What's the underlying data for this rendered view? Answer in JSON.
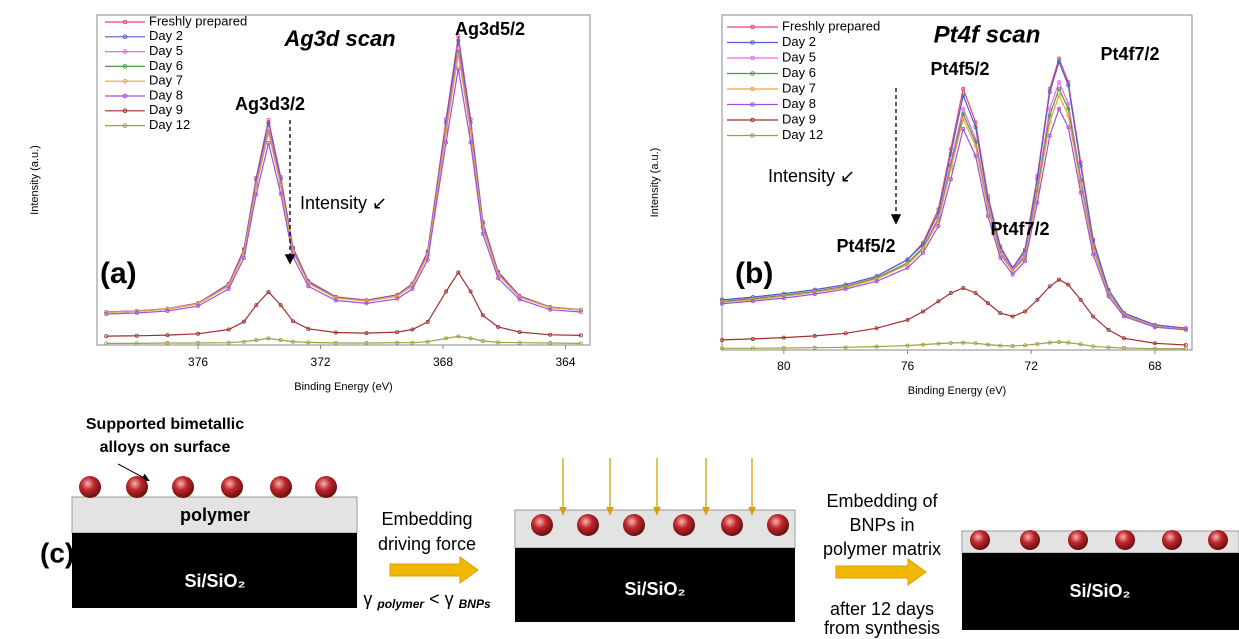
{
  "chart_data": [
    {
      "type": "line",
      "title": "Ag3d scan",
      "panel_label": "(a)",
      "x_label": "Binding Energy (eV)",
      "y_label": "Intensity (a.u.)",
      "annotations": [
        "Ag3d5/2",
        "Ag3d3/2",
        "Intensity ↙"
      ],
      "legend": "upper left",
      "xlim": [
        379.3,
        363.2
      ],
      "xticks": [
        376,
        372,
        368,
        364
      ],
      "ylim": [
        0,
        100
      ],
      "x": [
        379,
        378,
        377,
        376,
        375,
        374.5,
        374.1,
        373.7,
        373.3,
        372.9,
        372.4,
        371.5,
        370.5,
        369.5,
        369,
        368.5,
        367.9,
        367.5,
        367.1,
        366.7,
        366.2,
        365.5,
        364.5,
        363.5
      ],
      "series": [
        {
          "name": "Freshly prepared",
          "color": "#ee4466",
          "values": [
            10.0,
            10.3,
            11.0,
            12.7,
            18.5,
            29.1,
            50.7,
            68.2,
            50.9,
            29.5,
            19.4,
            14.6,
            13.6,
            15.2,
            18.6,
            28.4,
            68.4,
            93.6,
            68.4,
            37.3,
            22.2,
            14.9,
            11.5,
            10.7
          ]
        },
        {
          "name": "Day 2",
          "color": "#4c5fd6",
          "values": [
            10.0,
            10.3,
            11.0,
            12.6,
            18.4,
            28.8,
            50.1,
            67.3,
            50.3,
            29.2,
            19.2,
            14.5,
            13.5,
            15.1,
            18.5,
            28.1,
            67.5,
            92.3,
            67.5,
            36.9,
            22.0,
            14.8,
            11.5,
            10.7
          ]
        },
        {
          "name": "Day 5",
          "color": "#ee66ee",
          "values": [
            10.0,
            10.2,
            10.9,
            12.5,
            18.1,
            28.2,
            48.8,
            65.5,
            49.0,
            28.6,
            18.9,
            14.3,
            13.4,
            14.9,
            18.2,
            27.5,
            65.7,
            89.8,
            65.7,
            36.0,
            21.6,
            14.6,
            11.4,
            10.6
          ]
        },
        {
          "name": "Day 6",
          "color": "#4a9a4a",
          "values": [
            9.9,
            10.2,
            10.9,
            12.5,
            17.9,
            27.9,
            48.2,
            64.6,
            48.4,
            28.3,
            18.8,
            14.3,
            13.3,
            14.8,
            18.0,
            27.2,
            64.8,
            88.5,
            64.8,
            35.6,
            21.4,
            14.5,
            11.4,
            10.6
          ]
        },
        {
          "name": "Day 7",
          "color": "#f0a040",
          "values": [
            9.9,
            10.2,
            10.9,
            12.5,
            17.9,
            27.8,
            48.0,
            64.4,
            48.2,
            28.2,
            18.7,
            14.2,
            13.3,
            14.8,
            18.0,
            27.1,
            64.5,
            88.1,
            64.5,
            35.5,
            21.3,
            14.5,
            11.3,
            10.6
          ]
        },
        {
          "name": "Day 8",
          "color": "#a050e0",
          "values": [
            9.4,
            9.7,
            10.3,
            11.8,
            17.0,
            26.4,
            45.6,
            61.2,
            45.8,
            26.7,
            17.8,
            13.5,
            12.6,
            14.0,
            17.0,
            25.8,
            61.4,
            83.8,
            61.4,
            33.7,
            20.2,
            13.8,
            10.7,
            10.0
          ]
        },
        {
          "name": "Day 9",
          "color": "#a03030",
          "values": [
            2.7,
            2.8,
            3.0,
            3.4,
            4.7,
            7.1,
            12.1,
            16.1,
            12.1,
            7.2,
            4.9,
            3.8,
            3.6,
            3.9,
            4.7,
            7.0,
            16.2,
            22.0,
            16.2,
            9.0,
            5.5,
            3.9,
            3.1,
            2.9
          ]
        },
        {
          "name": "Day 12",
          "color": "#a0a040",
          "values": [
            0.5,
            0.5,
            0.6,
            0.6,
            0.7,
            1.0,
            1.5,
            2.0,
            1.5,
            1.0,
            0.8,
            0.6,
            0.6,
            0.7,
            0.7,
            1.0,
            2.0,
            2.6,
            2.0,
            1.2,
            0.8,
            0.7,
            0.6,
            0.5
          ]
        }
      ]
    },
    {
      "type": "line",
      "title": "Pt4f scan",
      "panel_label": "(b)",
      "x_label": "Binding Energy (eV)",
      "y_label": "Intensity (a.u.)",
      "annotations": [
        "Pt4f5/2",
        "Pt4f7/2",
        "Intensity ↙",
        "Pt4f5/2",
        "Pt4f7/2"
      ],
      "legend": "upper left",
      "xlim": [
        82,
        66.8
      ],
      "xticks": [
        80,
        76,
        72,
        68
      ],
      "ylim": [
        0,
        100
      ],
      "x": [
        82,
        81,
        80,
        79,
        78,
        77,
        76,
        75.5,
        75,
        74.6,
        74.2,
        73.8,
        73.4,
        73,
        72.6,
        72.2,
        71.8,
        71.4,
        71.1,
        70.8,
        70.4,
        70,
        69.5,
        69,
        68,
        67
      ],
      "series": [
        {
          "name": "Freshly prepared",
          "color": "#ee4466",
          "values": [
            15,
            15.8,
            16.8,
            18,
            19.5,
            22,
            27,
            32,
            42,
            60,
            78,
            68,
            46,
            31,
            24.5,
            30,
            52,
            78,
            87,
            80,
            56,
            33,
            18,
            11,
            7.5,
            6.5
          ]
        },
        {
          "name": "Day 2",
          "color": "#4c5fd6",
          "values": [
            15,
            15.8,
            16.8,
            18,
            19.5,
            22,
            27,
            31.5,
            41,
            58.5,
            76,
            66.5,
            45,
            30.5,
            24.5,
            29.5,
            51,
            77,
            86,
            79,
            55,
            32.5,
            18,
            11,
            7.5,
            6.5
          ]
        },
        {
          "name": "Day 5",
          "color": "#ee66ee",
          "values": [
            14.5,
            15.3,
            16.3,
            17.5,
            19,
            21.5,
            26,
            30.5,
            39.5,
            56,
            72,
            63,
            43,
            29.5,
            24,
            28.5,
            48.5,
            72,
            80,
            73.5,
            51.5,
            31,
            17,
            10.5,
            7,
            6.2
          ]
        },
        {
          "name": "Day 6",
          "color": "#4a9a4a",
          "values": [
            14.5,
            15.3,
            16.3,
            17.5,
            19,
            21.5,
            26,
            30.5,
            39,
            55,
            70.5,
            62,
            42.5,
            29,
            23.5,
            28,
            47.5,
            70,
            78,
            72,
            50.5,
            30.5,
            17,
            10.5,
            7,
            6.2
          ]
        },
        {
          "name": "Day 7",
          "color": "#f0a040",
          "values": [
            14.2,
            15,
            16,
            17.2,
            18.7,
            21.2,
            25.5,
            30,
            38.5,
            54,
            69,
            61,
            42,
            28.5,
            23.5,
            27.5,
            46.5,
            68,
            76,
            70,
            49.5,
            30,
            16.8,
            10.4,
            7,
            6.2
          ]
        },
        {
          "name": "Day 8",
          "color": "#a050e0",
          "values": [
            13.8,
            14.6,
            15.5,
            16.7,
            18.2,
            20.5,
            24.5,
            29,
            37,
            51,
            66,
            58,
            40,
            27.5,
            22.5,
            26.5,
            44,
            64,
            72,
            66.5,
            47,
            28.5,
            16,
            10,
            6.8,
            6
          ]
        },
        {
          "name": "Day 9",
          "color": "#a03030",
          "values": [
            3,
            3.3,
            3.7,
            4.2,
            5,
            6.5,
            9,
            11.5,
            14.5,
            17,
            18.5,
            17,
            14,
            11,
            10,
            11.5,
            15,
            19,
            21,
            19.5,
            15,
            10,
            6,
            3.5,
            2,
            1.5
          ]
        },
        {
          "name": "Day 12",
          "color": "#a0a040",
          "values": [
            0.5,
            0.5,
            0.6,
            0.7,
            0.8,
            1,
            1.3,
            1.6,
            1.9,
            2.1,
            2.2,
            2,
            1.6,
            1.3,
            1.2,
            1.4,
            1.8,
            2.2,
            2.4,
            2.2,
            1.7,
            1.1,
            0.8,
            0.6,
            0.4,
            0.4
          ]
        }
      ]
    }
  ],
  "diagram": {
    "panel_label": "(c)",
    "callout": [
      "Supported bimetallic",
      "alloys on surface"
    ],
    "polymer_label": "polymer",
    "substrate_labels": [
      "Si/SiO₂",
      "Si/SiO₂",
      "Si/SiO₂"
    ],
    "step1": [
      "Embedding",
      "driving force"
    ],
    "condition": [
      "γ",
      "polymer",
      "<",
      "γ",
      "BNPs"
    ],
    "step2": [
      "Embedding of",
      "BNPs in",
      "polymer matrix"
    ],
    "step2_note": [
      "after 12 days",
      "from synthesis"
    ]
  }
}
